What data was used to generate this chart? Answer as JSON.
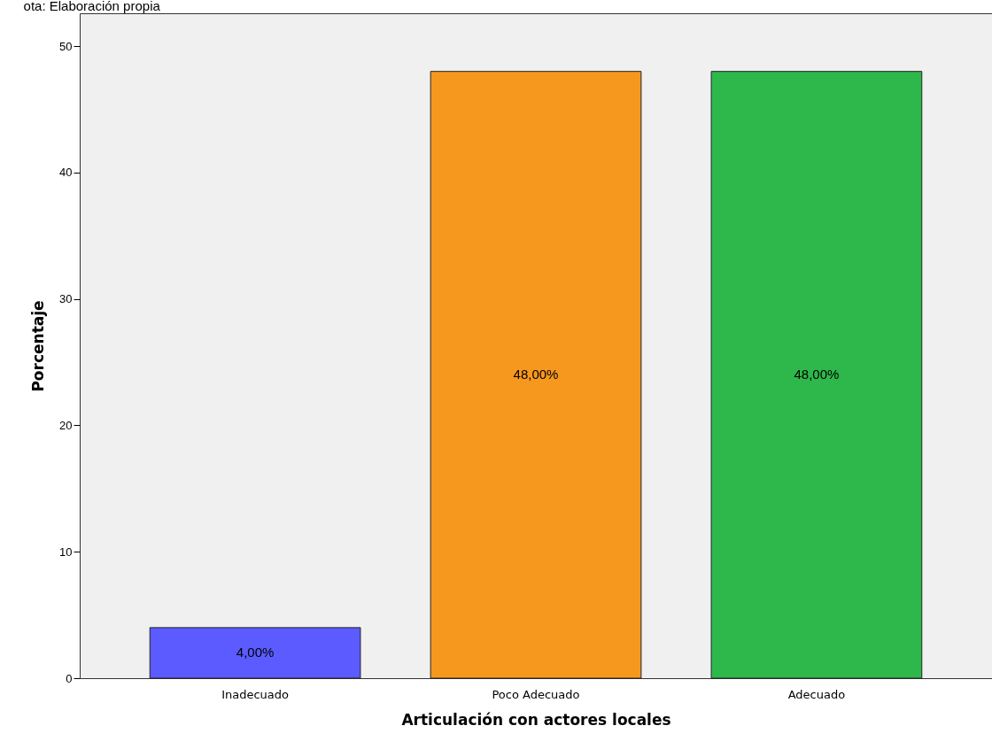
{
  "chart_data": {
    "type": "bar",
    "annotations": [
      "ota: Elaboración propia"
    ],
    "xlabel": "Articulación con actores locales",
    "ylabel": "Porcentaje",
    "categories": [
      "Inadecuado",
      "Poco Adecuado",
      "Adecuado"
    ],
    "values": [
      4,
      48,
      48
    ],
    "colors": [
      "#5b5bff",
      "#f7981e",
      "#2eb84b"
    ],
    "value_labels": [
      "4,00%",
      "48,00%",
      "48,00%"
    ],
    "ylim": [
      0,
      52.6
    ],
    "yticks": [
      0,
      10,
      20,
      30,
      40,
      50
    ],
    "grid": false
  }
}
